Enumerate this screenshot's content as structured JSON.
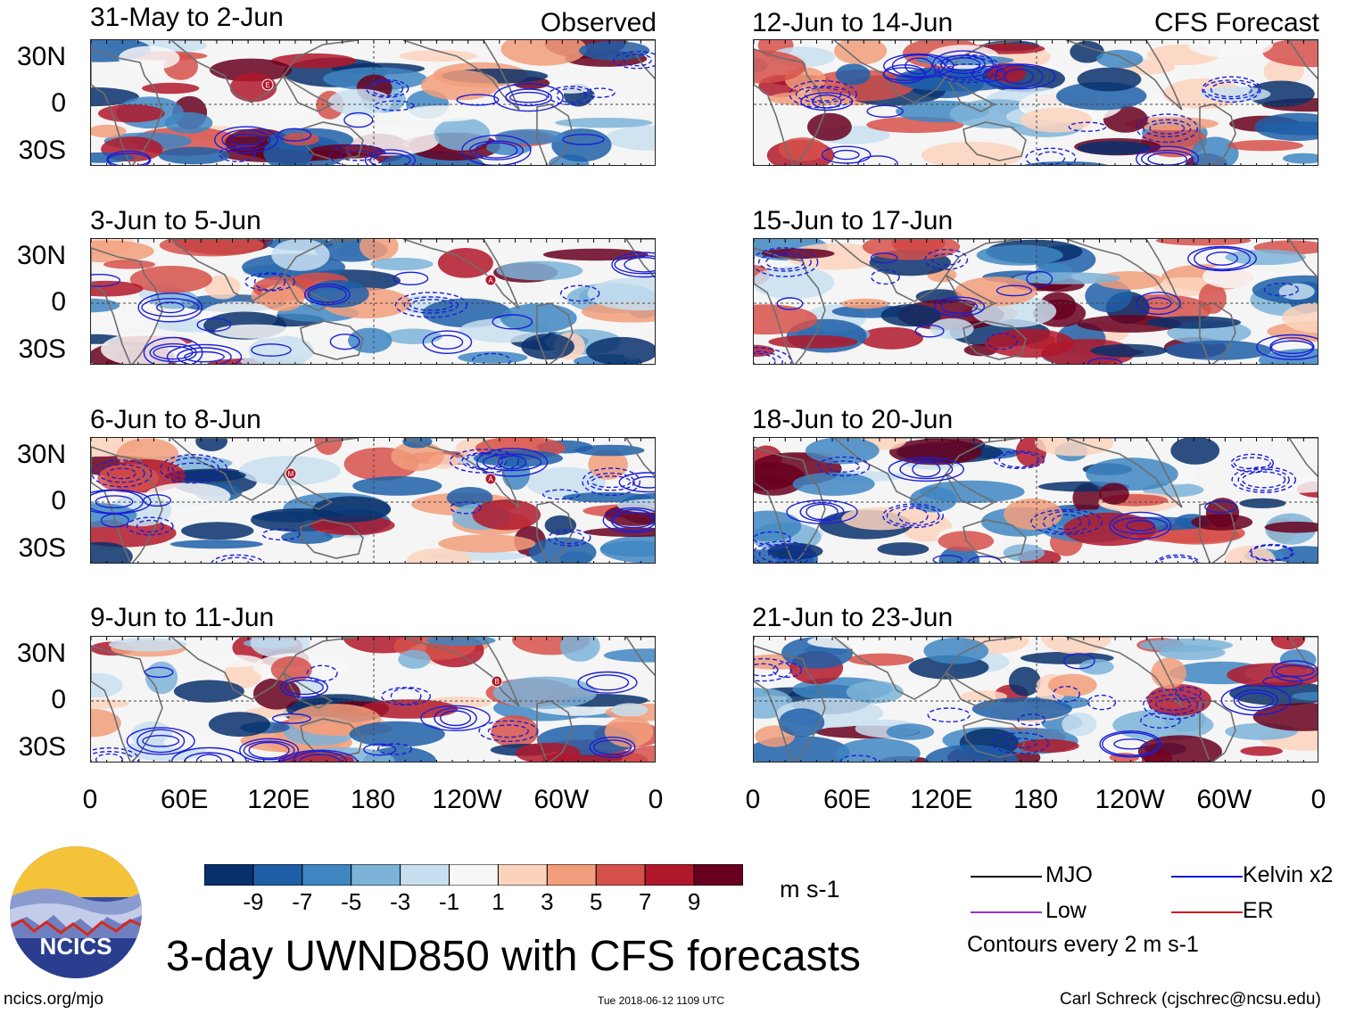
{
  "chart_data": {
    "type": "heatmap",
    "title": "3-day UWND850 with CFS forecasts",
    "variable": "UWND850",
    "units": "m s-1",
    "colorbar": {
      "ticks": [
        "-9",
        "-7",
        "-5",
        "-3",
        "-1",
        "1",
        "3",
        "5",
        "7",
        "9"
      ],
      "colors": [
        "#08306b",
        "#1f5fa8",
        "#3f86c2",
        "#7db3d8",
        "#c8dff0",
        "#f7f7f7",
        "#fbd3bd",
        "#f29d7b",
        "#d6504a",
        "#b0172a",
        "#67001f"
      ]
    },
    "y_ticks": [
      "30N",
      "0",
      "30S"
    ],
    "x_ticks": [
      "0",
      "60E",
      "120E",
      "180",
      "120W",
      "60W",
      "0"
    ],
    "columns": [
      {
        "tag": "Observed",
        "panels": [
          "31-May to 2-Jun",
          "3-Jun to 5-Jun",
          "6-Jun to 8-Jun",
          "9-Jun to 11-Jun"
        ]
      },
      {
        "tag": "CFS Forecast",
        "panels": [
          "12-Jun to 14-Jun",
          "15-Jun to 17-Jun",
          "18-Jun to 20-Jun",
          "21-Jun to 23-Jun"
        ]
      }
    ],
    "storm_markers": {
      "31-May to 2-Jun": [
        "E"
      ],
      "3-Jun to 5-Jun": [
        "A"
      ],
      "6-Jun to 8-Jun": [
        "M",
        "A"
      ],
      "9-Jun to 11-Jun": [
        "B"
      ]
    },
    "contour_legend": [
      {
        "label": "MJO",
        "color": "#000000"
      },
      {
        "label": "Kelvin x2",
        "color": "#0a14d8"
      },
      {
        "label": "Low",
        "color": "#9b30d9"
      },
      {
        "label": "ER",
        "color": "#d41c1c"
      }
    ],
    "contour_note": "Contours every 2 m s-1"
  },
  "logo_text": "NCICS",
  "footer": {
    "url": "ncics.org/mjo",
    "timestamp": "Tue 2018-06-12 1109 UTC",
    "author": "Carl Schreck (cjschrec@ncsu.edu)"
  }
}
